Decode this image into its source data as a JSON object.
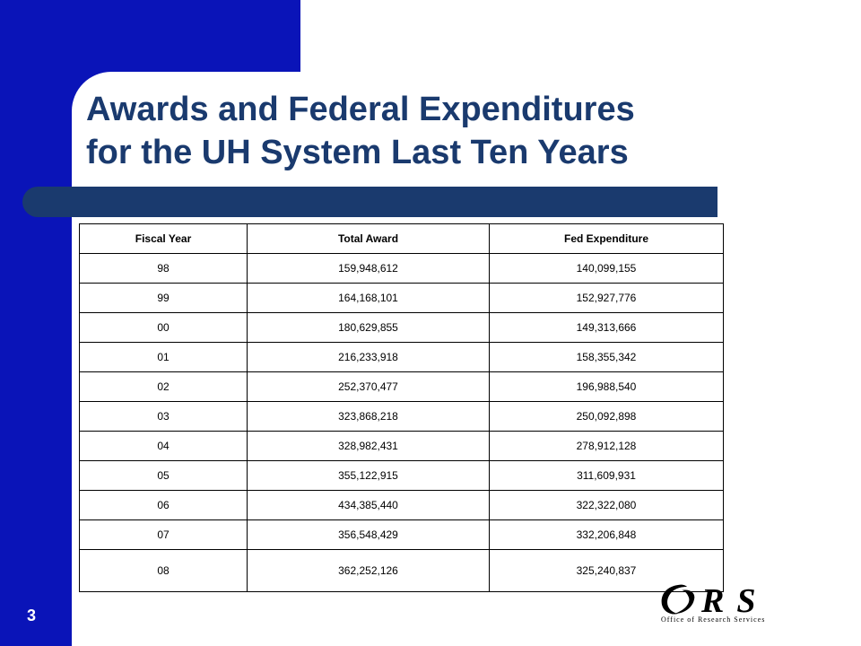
{
  "title": {
    "line1": "Awards and Federal Expenditures",
    "line2": "for the UH System Last Ten Years"
  },
  "table": {
    "headers": [
      "Fiscal Year",
      "Total Award",
      "Fed Expenditure"
    ],
    "rows": [
      [
        "98",
        "159,948,612",
        "140,099,155"
      ],
      [
        "99",
        "164,168,101",
        "152,927,776"
      ],
      [
        "00",
        "180,629,855",
        "149,313,666"
      ],
      [
        "01",
        "216,233,918",
        "158,355,342"
      ],
      [
        "02",
        "252,370,477",
        "196,988,540"
      ],
      [
        "03",
        "323,868,218",
        "250,092,898"
      ],
      [
        "04",
        "328,982,431",
        "278,912,128"
      ],
      [
        "05",
        "355,122,915",
        "311,609,931"
      ],
      [
        "06",
        "434,385,440",
        "322,322,080"
      ],
      [
        "07",
        "356,548,429",
        "332,206,848"
      ],
      [
        "08",
        "362,252,126",
        "325,240,837"
      ]
    ]
  },
  "page_number": "3",
  "logo": {
    "letters": "RS",
    "subtitle": "Office of Research Services"
  },
  "colors": {
    "left_block": "#0a14b8",
    "title_text": "#1a3a6e",
    "title_bar": "#1a3a6e"
  }
}
